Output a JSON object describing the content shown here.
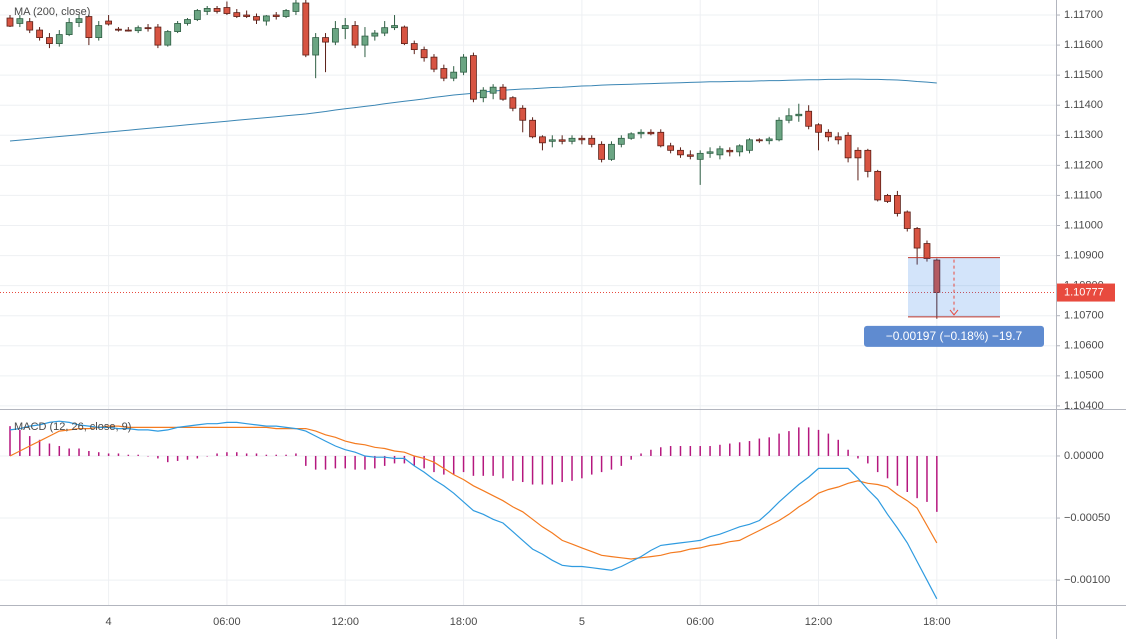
{
  "chart_data": [
    {
      "type": "candlestick",
      "ylim": [
        1.10393,
        1.1175
      ],
      "yticks": [
        {
          "value": 1.117,
          "label": "1.11700"
        },
        {
          "value": 1.116,
          "label": "1.11600"
        },
        {
          "value": 1.115,
          "label": "1.11500"
        },
        {
          "value": 1.114,
          "label": "1.11400"
        },
        {
          "value": 1.113,
          "label": "1.11300"
        },
        {
          "value": 1.112,
          "label": "1.11200"
        },
        {
          "value": 1.111,
          "label": "1.11100"
        },
        {
          "value": 1.11,
          "label": "1.11000"
        },
        {
          "value": 1.109,
          "label": "1.10900"
        },
        {
          "value": 1.108,
          "label": "1.10800"
        },
        {
          "value": 1.107,
          "label": "1.10700"
        },
        {
          "value": 1.106,
          "label": "1.10600"
        },
        {
          "value": 1.105,
          "label": "1.10500"
        },
        {
          "value": 1.104,
          "label": "1.10400"
        }
      ],
      "grid": true,
      "up_color": "#6ba583",
      "down_color": "#d75442",
      "open": [
        1.1169,
        1.11672,
        1.11678,
        1.1165,
        1.11625,
        1.11605,
        1.11635,
        1.11675,
        1.11695,
        1.11625,
        1.1168,
        1.11653,
        1.1165,
        1.11648,
        1.11658,
        1.1166,
        1.116,
        1.11645,
        1.11672,
        1.11685,
        1.11712,
        1.11722,
        1.11725,
        1.11708,
        1.117,
        1.11695,
        1.1168,
        1.117,
        1.11695,
        1.11712,
        1.1174,
        1.11567,
        1.11625,
        1.1161,
        1.11655,
        1.11665,
        1.116,
        1.1163,
        1.1164,
        1.11658,
        1.1166,
        1.11605,
        1.11585,
        1.1156,
        1.11522,
        1.1149,
        1.1151,
        1.11565,
        1.11425,
        1.1144,
        1.1146,
        1.11425,
        1.1139,
        1.1135,
        1.11295,
        1.1128,
        1.11285,
        1.1128,
        1.1129,
        1.1129,
        1.1127,
        1.1122,
        1.1127,
        1.1129,
        1.11305,
        1.1131,
        1.1131,
        1.11265,
        1.1125,
        1.11235,
        1.1122,
        1.1124,
        1.11235,
        1.1125,
        1.11245,
        1.1125,
        1.11285,
        1.11282,
        1.11285,
        1.1135,
        1.11365,
        1.1138,
        1.11335,
        1.1131,
        1.11295,
        1.113,
        1.1125,
        1.1125,
        1.1118,
        1.111,
        1.111,
        1.11045,
        1.1099,
        1.1094,
        1.10885
      ],
      "high": [
        1.117,
        1.117,
        1.1169,
        1.1166,
        1.1164,
        1.1165,
        1.1169,
        1.117,
        1.117,
        1.1168,
        1.117,
        1.1166,
        1.1166,
        1.11665,
        1.1167,
        1.1167,
        1.1165,
        1.1168,
        1.1169,
        1.1172,
        1.1173,
        1.1173,
        1.11745,
        1.1172,
        1.11715,
        1.11705,
        1.117,
        1.1171,
        1.1172,
        1.1175,
        1.1175,
        1.1164,
        1.1164,
        1.1168,
        1.1169,
        1.1168,
        1.1166,
        1.1165,
        1.1168,
        1.117,
        1.11665,
        1.11615,
        1.11595,
        1.1157,
        1.11535,
        1.1153,
        1.1157,
        1.11575,
        1.1146,
        1.1147,
        1.1147,
        1.1143,
        1.114,
        1.1136,
        1.113,
        1.113,
        1.113,
        1.113,
        1.113,
        1.113,
        1.1128,
        1.1128,
        1.113,
        1.1131,
        1.1132,
        1.1132,
        1.1132,
        1.11275,
        1.1126,
        1.1125,
        1.1125,
        1.1126,
        1.11265,
        1.1126,
        1.1127,
        1.1129,
        1.1129,
        1.11295,
        1.1136,
        1.1139,
        1.11405,
        1.114,
        1.1134,
        1.1132,
        1.1131,
        1.1131,
        1.1126,
        1.11255,
        1.11185,
        1.11105,
        1.11115,
        1.1105,
        1.10995,
        1.1095,
        1.1089
      ],
      "low": [
        1.1166,
        1.1166,
        1.1164,
        1.11615,
        1.1159,
        1.11595,
        1.1163,
        1.1166,
        1.116,
        1.11615,
        1.11665,
        1.11645,
        1.11645,
        1.1164,
        1.11645,
        1.1159,
        1.11595,
        1.1164,
        1.11665,
        1.1168,
        1.117,
        1.11705,
        1.117,
        1.1169,
        1.1169,
        1.1167,
        1.11665,
        1.11685,
        1.1169,
        1.117,
        1.1156,
        1.1149,
        1.1151,
        1.116,
        1.1162,
        1.1159,
        1.1156,
        1.11615,
        1.1163,
        1.1165,
        1.116,
        1.1157,
        1.11545,
        1.1151,
        1.1148,
        1.1148,
        1.115,
        1.1141,
        1.1141,
        1.1142,
        1.11415,
        1.1138,
        1.1131,
        1.1129,
        1.1125,
        1.1126,
        1.1127,
        1.1127,
        1.1127,
        1.1126,
        1.1121,
        1.11215,
        1.1126,
        1.11285,
        1.1129,
        1.113,
        1.1126,
        1.1124,
        1.11225,
        1.1122,
        1.11135,
        1.11225,
        1.1122,
        1.1123,
        1.1123,
        1.1124,
        1.11275,
        1.1127,
        1.1128,
        1.1134,
        1.11345,
        1.1132,
        1.1125,
        1.1128,
        1.1127,
        1.1121,
        1.1115,
        1.1116,
        1.1108,
        1.11075,
        1.1103,
        1.1098,
        1.1087,
        1.1088,
        1.1069
      ],
      "close": [
        1.11663,
        1.11688,
        1.1165,
        1.11625,
        1.11605,
        1.11635,
        1.11675,
        1.11688,
        1.11625,
        1.11665,
        1.1167,
        1.1165,
        1.11648,
        1.11658,
        1.11655,
        1.116,
        1.11645,
        1.11672,
        1.11685,
        1.11715,
        1.11722,
        1.11712,
        1.11705,
        1.11695,
        1.11695,
        1.11683,
        1.11697,
        1.11695,
        1.11715,
        1.1174,
        1.11567,
        1.11625,
        1.1161,
        1.11655,
        1.11665,
        1.116,
        1.1163,
        1.1164,
        1.11658,
        1.11665,
        1.11605,
        1.11585,
        1.11558,
        1.1152,
        1.1149,
        1.1151,
        1.1156,
        1.1142,
        1.1145,
        1.1146,
        1.1142,
        1.1139,
        1.1135,
        1.11295,
        1.11275,
        1.11285,
        1.1128,
        1.1129,
        1.11285,
        1.1127,
        1.1122,
        1.1127,
        1.1129,
        1.11305,
        1.1131,
        1.11305,
        1.11265,
        1.1125,
        1.11235,
        1.1123,
        1.1124,
        1.11245,
        1.11255,
        1.11245,
        1.11265,
        1.11285,
        1.11282,
        1.11288,
        1.1135,
        1.11365,
        1.1137,
        1.1133,
        1.1131,
        1.11295,
        1.11285,
        1.11225,
        1.11225,
        1.1118,
        1.11085,
        1.1108,
        1.1104,
        1.1099,
        1.10925,
        1.1089,
        1.10777
      ],
      "ma": {
        "name": "MA (200, close)",
        "color": "#3b86b4",
        "values": [
          1.11281,
          1.11284,
          1.11287,
          1.1129,
          1.11293,
          1.11296,
          1.11299,
          1.11302,
          1.11305,
          1.11308,
          1.11311,
          1.11314,
          1.11317,
          1.1132,
          1.11323,
          1.11326,
          1.11329,
          1.11332,
          1.11335,
          1.11338,
          1.11341,
          1.11344,
          1.11347,
          1.1135,
          1.11353,
          1.11356,
          1.11359,
          1.11362,
          1.11365,
          1.11368,
          1.11371,
          1.11375,
          1.11379,
          1.11384,
          1.11388,
          1.11392,
          1.11396,
          1.114,
          1.11405,
          1.11409,
          1.11413,
          1.11417,
          1.11421,
          1.11426,
          1.1143,
          1.11434,
          1.11437,
          1.1144,
          1.11444,
          1.11447,
          1.1145,
          1.11452,
          1.11454,
          1.11455,
          1.11457,
          1.11459,
          1.1146,
          1.11462,
          1.11464,
          1.11465,
          1.11467,
          1.11468,
          1.11469,
          1.1147,
          1.11471,
          1.11472,
          1.11473,
          1.11474,
          1.11475,
          1.11476,
          1.11477,
          1.11478,
          1.11478,
          1.11479,
          1.1148,
          1.1148,
          1.11481,
          1.11482,
          1.11482,
          1.11483,
          1.11484,
          1.11485,
          1.11485,
          1.11486,
          1.11486,
          1.11487,
          1.11487,
          1.11486,
          1.11486,
          1.11485,
          1.11484,
          1.11482,
          1.11479,
          1.11477,
          1.11474
        ]
      },
      "last_price": 1.10777,
      "last_price_color": "#e84a3e",
      "measure": {
        "from": 1.10893,
        "to": 1.10696,
        "label": "−0.00197 (−0.18%) −19.7"
      }
    },
    {
      "type": "line",
      "title": "MACD (12, 26, close, 9)",
      "ylim": [
        -0.0012,
        0.00037
      ],
      "yticks": [
        {
          "value": 0,
          "label": "0.00000"
        },
        {
          "value": -0.0005,
          "label": "−0.00050"
        },
        {
          "value": -0.001,
          "label": "−0.00100"
        }
      ],
      "grid": true,
      "categories": [
        null,
        null,
        null,
        null,
        null,
        null,
        null,
        null,
        null,
        null,
        "4",
        null,
        null,
        null,
        null,
        null,
        null,
        null,
        null,
        null,
        null,
        null,
        "06:00",
        null,
        null,
        null,
        null,
        null,
        null,
        null,
        null,
        null,
        null,
        null,
        "12:00",
        null,
        null,
        null,
        null,
        null,
        null,
        null,
        null,
        null,
        null,
        null,
        "18:00",
        null,
        null,
        null,
        null,
        null,
        null,
        null,
        null,
        null,
        null,
        null,
        "5",
        null,
        null,
        null,
        null,
        null,
        null,
        null,
        null,
        null,
        null,
        null,
        "06:00",
        null,
        null,
        null,
        null,
        null,
        null,
        null,
        null,
        null,
        null,
        null,
        "12:00",
        null,
        null,
        null,
        null,
        null,
        null,
        null,
        null,
        null,
        null,
        null,
        "18:00"
      ],
      "histogram": {
        "color": "#b5177e",
        "values": [
          0.00024,
          0.00021,
          0.00016,
          0.00013,
          0.0001,
          8e-05,
          6e-05,
          6e-05,
          4e-05,
          3e-05,
          2e-05,
          2e-05,
          1e-05,
          1e-05,
          0,
          -2e-05,
          -5e-05,
          -4e-05,
          -3e-05,
          -2e-05,
          0,
          2e-05,
          3e-05,
          3e-05,
          2e-05,
          2e-05,
          1e-05,
          1e-05,
          1e-05,
          2e-05,
          -8e-05,
          -0.00011,
          -0.00011,
          -0.0001,
          -0.0001,
          -0.00011,
          -0.00011,
          -0.0001,
          -8e-05,
          -6e-05,
          -6e-05,
          -8e-05,
          -0.0001,
          -0.00013,
          -0.00015,
          -0.00015,
          -0.00013,
          -0.00016,
          -0.00016,
          -0.00016,
          -0.00018,
          -0.0002,
          -0.00021,
          -0.00023,
          -0.00023,
          -0.00023,
          -0.00021,
          -0.0002,
          -0.00018,
          -0.00015,
          -0.00013,
          -0.00011,
          -8e-05,
          -3e-05,
          2e-05,
          5e-05,
          7e-05,
          8e-05,
          8e-05,
          8e-05,
          8e-05,
          8e-05,
          9e-05,
          0.0001,
          0.00011,
          0.00012,
          0.00014,
          0.00015,
          0.00018,
          0.0002,
          0.00023,
          0.00023,
          0.00021,
          0.00018,
          0.00013,
          5e-05,
          -2e-05,
          -6e-05,
          -0.00013,
          -0.00018,
          -0.00024,
          -0.00029,
          -0.00034,
          -0.00037,
          -0.00045
        ]
      },
      "macd": {
        "color": "#2f9be0",
        "values": [
          0.00021,
          0.00022,
          0.00024,
          0.00025,
          0.00027,
          0.00028,
          0.00027,
          0.00025,
          0.00024,
          0.00023,
          0.00023,
          0.00022,
          0.00022,
          0.00021,
          0.00021,
          0.0002,
          0.00021,
          0.00023,
          0.00024,
          0.00025,
          0.00026,
          0.00026,
          0.00027,
          0.00027,
          0.00026,
          0.00025,
          0.00024,
          0.00024,
          0.00023,
          0.00022,
          0.0002,
          0.00016,
          0.00012,
          8e-05,
          5e-05,
          3e-05,
          0,
          -1e-05,
          -1e-05,
          -2e-05,
          -2e-05,
          -8e-05,
          -0.00013,
          -0.00019,
          -0.00024,
          -0.0003,
          -0.00037,
          -0.00044,
          -0.00047,
          -0.00051,
          -0.00054,
          -0.00061,
          -0.00068,
          -0.00075,
          -0.00079,
          -0.00084,
          -0.00088,
          -0.00089,
          -0.00089,
          -0.0009,
          -0.00091,
          -0.00092,
          -0.00089,
          -0.00085,
          -0.00081,
          -0.00076,
          -0.00072,
          -0.00071,
          -0.0007,
          -0.00069,
          -0.00068,
          -0.00065,
          -0.00063,
          -0.0006,
          -0.00057,
          -0.00055,
          -0.00052,
          -0.00045,
          -0.00037,
          -0.0003,
          -0.00023,
          -0.00017,
          -0.0001,
          -0.0001,
          -0.0001,
          -0.0001,
          -0.00018,
          -0.00027,
          -0.00035,
          -0.00047,
          -0.00058,
          -0.0007,
          -0.00085,
          -0.001,
          -0.00115
        ]
      },
      "signal": {
        "color": "#f47b20",
        "values": [
          0,
          4e-05,
          8e-05,
          0.00012,
          0.00016,
          0.0002,
          0.00021,
          0.00022,
          0.00022,
          0.00023,
          0.00024,
          0.00024,
          0.00023,
          0.00023,
          0.00023,
          0.00023,
          0.00023,
          0.00023,
          0.00023,
          0.00023,
          0.00023,
          0.00023,
          0.00023,
          0.00023,
          0.00023,
          0.00023,
          0.00023,
          0.00022,
          0.00022,
          0.00022,
          0.00022,
          0.0002,
          0.00017,
          0.00015,
          0.00012,
          0.0001,
          9e-05,
          7e-05,
          6e-05,
          4e-05,
          3e-05,
          0,
          -2e-05,
          -5e-05,
          -0.0001,
          -0.00015,
          -0.00019,
          -0.00024,
          -0.00028,
          -0.00032,
          -0.00036,
          -0.00041,
          -0.00045,
          -0.00051,
          -0.00057,
          -0.00062,
          -0.00068,
          -0.00071,
          -0.00074,
          -0.00077,
          -0.0008,
          -0.00081,
          -0.00082,
          -0.00083,
          -0.00082,
          -0.00081,
          -0.0008,
          -0.00078,
          -0.00077,
          -0.00075,
          -0.00074,
          -0.00072,
          -0.00071,
          -0.00069,
          -0.00068,
          -0.00064,
          -0.0006,
          -0.00056,
          -0.00052,
          -0.00047,
          -0.00041,
          -0.00036,
          -0.0003,
          -0.00027,
          -0.00025,
          -0.00022,
          -0.0002,
          -0.00022,
          -0.00023,
          -0.00025,
          -0.00031,
          -0.00036,
          -0.00042,
          -0.00056,
          -0.0007
        ]
      }
    }
  ]
}
